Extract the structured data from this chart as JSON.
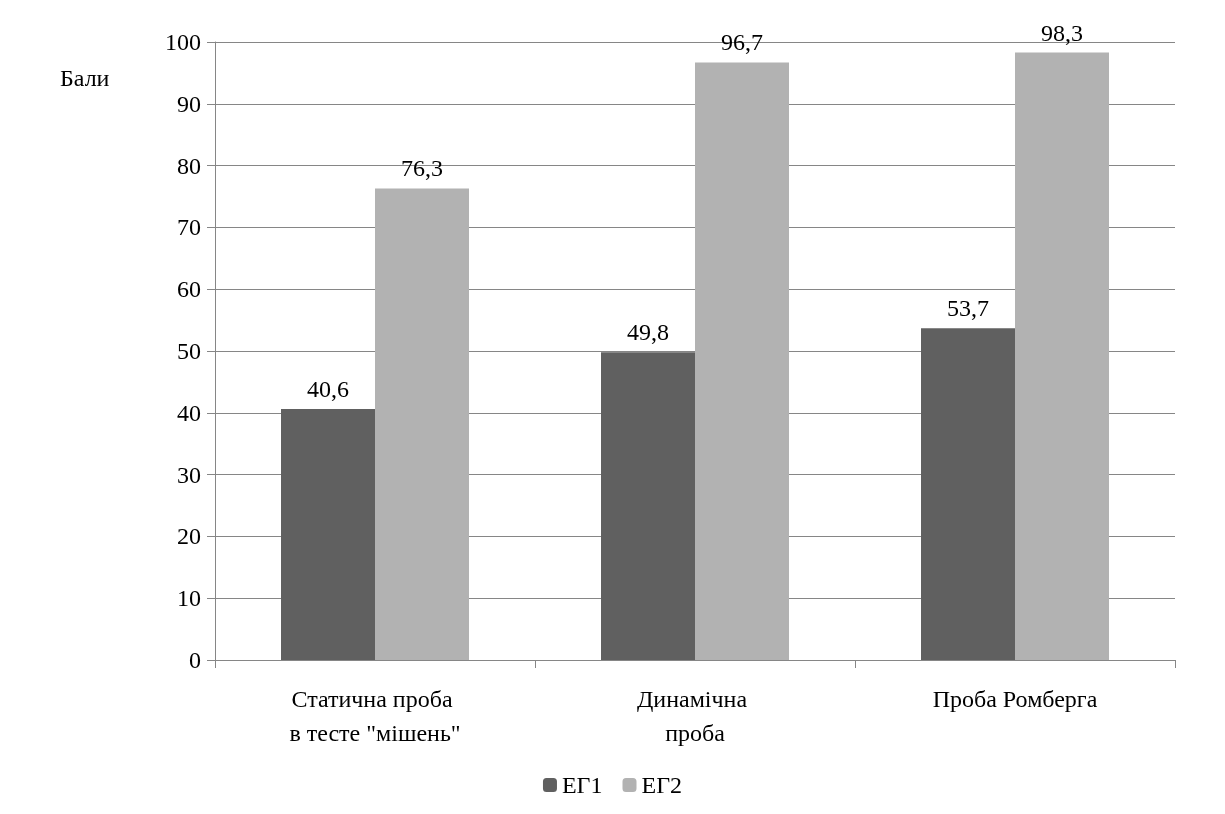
{
  "chart_data": {
    "type": "bar",
    "ylabel": "Бали",
    "categories": [
      "Статична проба в тесте \"мішень\"",
      "Динамічна проба",
      "Проба Ромберга"
    ],
    "series": [
      {
        "name": "ЕГ1",
        "color": "#606060",
        "values": [
          40.6,
          49.8,
          53.7
        ],
        "value_labels": [
          "40,6",
          "49,8",
          "53,7"
        ]
      },
      {
        "name": "ЕГ2",
        "color": "#b2b2b2",
        "values": [
          76.3,
          96.7,
          98.3
        ],
        "value_labels": [
          "76,3",
          "96,7",
          "98,3"
        ]
      }
    ],
    "ylim": [
      0,
      100
    ],
    "yticks": [
      0,
      10,
      20,
      30,
      40,
      50,
      60,
      70,
      80,
      90,
      100
    ],
    "grid": "y",
    "legend": "bottom"
  }
}
